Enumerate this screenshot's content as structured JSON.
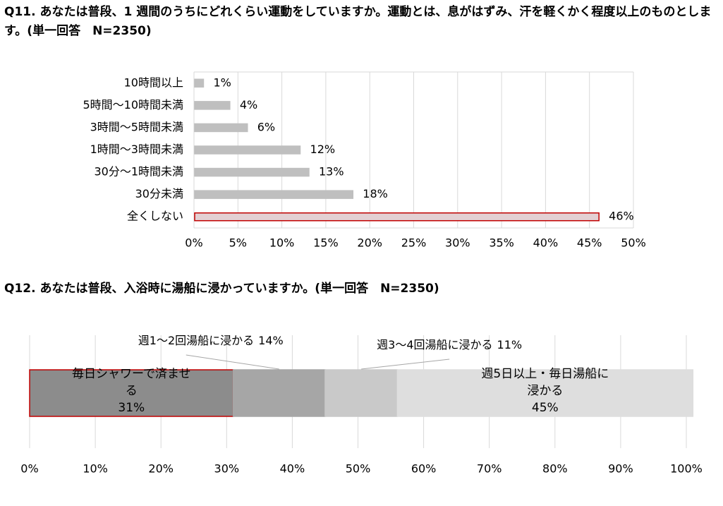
{
  "chart_data": [
    {
      "type": "barh",
      "title": "Q11.  あなたは普段、1 週間のうちにどれくらい運動をしていますか。運動とは、息がはずみ、汗を軽くかく程度以上のものとします。(単一回答　N=2350)",
      "categories": [
        "10時間以上",
        "5時間〜10時間未満",
        "3時間〜5時間未満",
        "1時間〜3時間未満",
        "30分〜1時間未満",
        "30分未満",
        "全くしない"
      ],
      "values": [
        1,
        4,
        6,
        12,
        13,
        18,
        46
      ],
      "value_labels": [
        "1%",
        "4%",
        "6%",
        "12%",
        "13%",
        "18%",
        "46%"
      ],
      "colors": [
        "#bfbfbf",
        "#bfbfbf",
        "#bfbfbf",
        "#bfbfbf",
        "#bfbfbf",
        "#bfbfbf",
        "#e3d0d3"
      ],
      "edgecolors": [
        "#bfbfbf",
        "#bfbfbf",
        "#bfbfbf",
        "#bfbfbf",
        "#bfbfbf",
        "#bfbfbf",
        "#c00000"
      ],
      "xlim": [
        0,
        50
      ],
      "xticks": [
        {
          "value": 0,
          "label": "0%"
        },
        {
          "value": 5,
          "label": "5%"
        },
        {
          "value": 10,
          "label": "10%"
        },
        {
          "value": 15,
          "label": "15%"
        },
        {
          "value": 20,
          "label": "20%"
        },
        {
          "value": 25,
          "label": "25%"
        },
        {
          "value": 30,
          "label": "30%"
        },
        {
          "value": 35,
          "label": "35%"
        },
        {
          "value": 40,
          "label": "40%"
        },
        {
          "value": 45,
          "label": "45%"
        },
        {
          "value": 50,
          "label": "50%"
        }
      ],
      "grid": true
    },
    {
      "type": "stacked_barh",
      "title": "Q12.  あなたは普段、入浴時に湯船に浸かっていますか。(単一回答　N=2350)",
      "series": [
        {
          "name": "毎日シャワーで済ませる",
          "values": [
            31
          ],
          "value_labels": [
            "31%"
          ],
          "color": "#8c8c8c",
          "edgecolor": "#c00000"
        },
        {
          "name": "週1〜2回湯船に浸かる",
          "values": [
            14
          ],
          "value_labels": [
            "14%"
          ],
          "color": "#a6a6a6",
          "edgecolor": "#a6a6a6"
        },
        {
          "name": "週3〜4回湯船に浸かる",
          "values": [
            11
          ],
          "value_labels": [
            "11%"
          ],
          "color": "#c9c9c9",
          "edgecolor": "#c9c9c9"
        },
        {
          "name": "週5日以上・毎日湯船に浸かる",
          "values": [
            45
          ],
          "value_labels": [
            "45%"
          ],
          "color": "#dedede",
          "edgecolor": "#dedede"
        }
      ],
      "xlim": [
        0,
        100
      ],
      "xticks": [
        {
          "value": 0,
          "label": "0%"
        },
        {
          "value": 10,
          "label": "10%"
        },
        {
          "value": 20,
          "label": "20%"
        },
        {
          "value": 30,
          "label": "30%"
        },
        {
          "value": 40,
          "label": "40%"
        },
        {
          "value": 50,
          "label": "50%"
        },
        {
          "value": 60,
          "label": "60%"
        },
        {
          "value": 70,
          "label": "70%"
        },
        {
          "value": 80,
          "label": "80%"
        },
        {
          "value": 90,
          "label": "90%"
        },
        {
          "value": 100,
          "label": "100%"
        }
      ],
      "grid": true
    }
  ]
}
